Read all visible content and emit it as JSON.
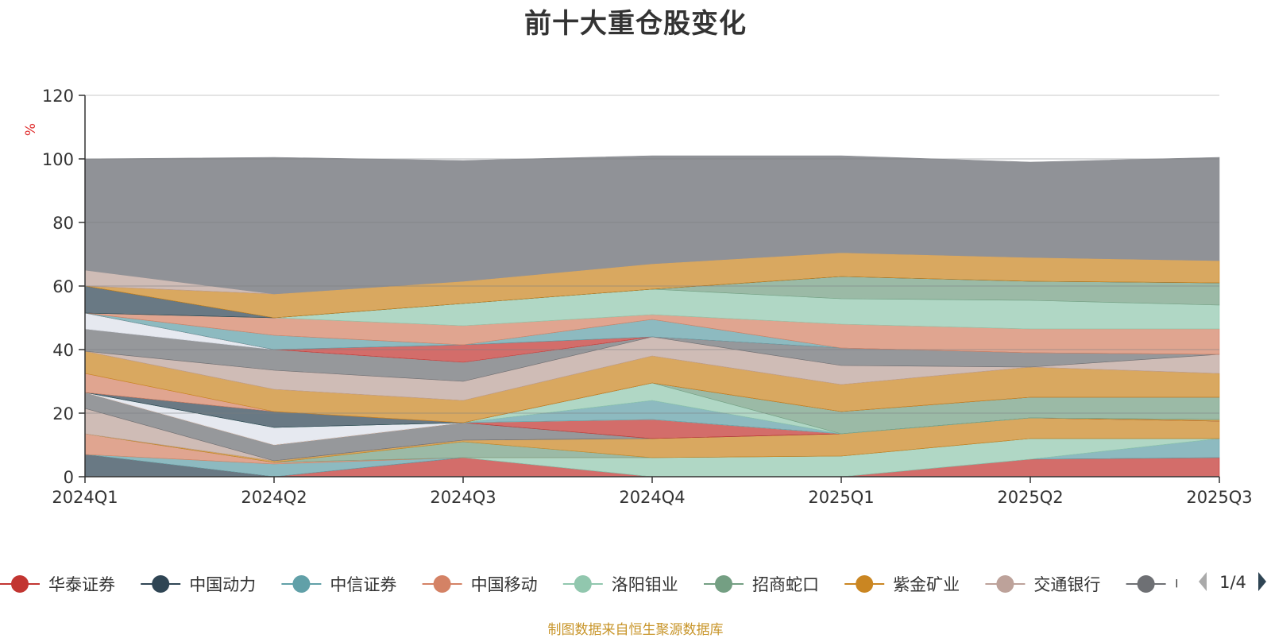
{
  "source": "制图数据来自恒生聚源数据库",
  "colors": {
    "axis": "#333333",
    "grid": "#c8c8c8",
    "rest": "#909297",
    "source_text": "#c8952a"
  },
  "chart_data": {
    "type": "area",
    "stacked": true,
    "title": "前十大重仓股变化",
    "ylabel": "%",
    "ylim": [
      0,
      120
    ],
    "yticks": [
      0,
      20,
      40,
      60,
      80,
      100,
      120
    ],
    "categories": [
      "2024Q1",
      "2024Q2",
      "2024Q3",
      "2024Q4",
      "2025Q1",
      "2025Q2",
      "2025Q3"
    ],
    "legend": {
      "items": [
        {
          "name": "华泰证券",
          "color": "#c23531"
        },
        {
          "name": "中国动力",
          "color": "#2f4554"
        },
        {
          "name": "中信证券",
          "color": "#61a0a8"
        },
        {
          "name": "中国移动",
          "color": "#d48265"
        },
        {
          "name": "洛阳钼业",
          "color": "#91c7ae"
        },
        {
          "name": "招商蛇口",
          "color": "#749f83"
        },
        {
          "name": "紫金矿业",
          "color": "#ca8622"
        },
        {
          "name": "交通银行",
          "color": "#bda29a"
        },
        {
          "name": "中国神华",
          "color": "#6e7074"
        }
      ],
      "page": "1/4"
    },
    "stack_layers": [
      {
        "color": "#2f4554",
        "values": [
          7,
          0,
          0,
          0,
          0,
          0,
          0
        ]
      },
      {
        "color": "#c23531",
        "values": [
          0,
          0,
          6,
          0,
          0,
          5.5,
          6
        ]
      },
      {
        "color": "#61a0a8",
        "values": [
          0,
          4,
          0,
          0,
          0,
          0,
          6
        ]
      },
      {
        "color": "#91c7ae",
        "values": [
          0,
          0,
          0,
          6,
          6.5,
          6.5,
          0
        ]
      },
      {
        "color": "#d48265",
        "values": [
          6.5,
          0.5,
          0,
          0,
          0,
          0,
          0
        ]
      },
      {
        "color": "#749f83",
        "values": [
          0,
          0,
          5,
          0,
          0,
          0,
          0
        ]
      },
      {
        "color": "#ca8622",
        "values": [
          0,
          0.5,
          0.5,
          6,
          7,
          6.5,
          5.5
        ]
      },
      {
        "color": "#bda29a",
        "values": [
          8,
          0,
          0,
          0,
          0,
          0,
          0
        ]
      },
      {
        "color": "#6e7074",
        "values": [
          5,
          5,
          5.5,
          0,
          0,
          0,
          0
        ]
      },
      {
        "color": "#c23531",
        "values": [
          0,
          0,
          0,
          6,
          0,
          0,
          0
        ]
      },
      {
        "color": "#ca8622",
        "values": [
          0,
          0,
          0,
          0,
          0,
          0,
          0.5
        ]
      },
      {
        "color": "#dde1ea",
        "values": [
          0,
          5.5,
          0,
          0,
          0,
          0,
          0
        ]
      },
      {
        "color": "#61a0a8",
        "values": [
          0,
          0,
          0,
          6,
          0,
          0,
          0
        ]
      },
      {
        "color": "#91c7ae",
        "values": [
          0,
          0,
          0,
          5.5,
          0,
          0,
          0
        ]
      },
      {
        "color": "#749f83",
        "values": [
          0,
          0,
          0,
          0,
          7,
          6.5,
          7
        ]
      },
      {
        "color": "#2f4554",
        "values": [
          0,
          5,
          0,
          0,
          0,
          0,
          0
        ]
      },
      {
        "color": "#d48265",
        "values": [
          6,
          0,
          0,
          0,
          0,
          0,
          0
        ]
      },
      {
        "color": "#ca8622",
        "values": [
          7,
          7,
          7,
          8.5,
          8.5,
          9.5,
          7.5
        ]
      },
      {
        "color": "#bda29a",
        "values": [
          0,
          6,
          6,
          6,
          6,
          0,
          6
        ]
      },
      {
        "color": "#6e7074",
        "values": [
          7,
          6.5,
          6,
          0,
          5.5,
          4.5,
          0
        ]
      },
      {
        "color": "#dde1ea",
        "values": [
          5,
          0,
          0,
          0,
          0,
          0,
          0
        ]
      },
      {
        "color": "#c23531",
        "values": [
          0,
          0,
          5.5,
          0,
          0,
          0,
          0
        ]
      },
      {
        "color": "#61a0a8",
        "values": [
          0,
          4.5,
          0,
          5.5,
          0,
          0,
          0
        ]
      },
      {
        "color": "#d48265",
        "values": [
          0,
          5.5,
          6,
          1.5,
          7.5,
          7.5,
          8
        ]
      },
      {
        "color": "#91c7ae",
        "values": [
          0,
          0,
          7,
          8,
          8,
          9,
          7.5
        ]
      },
      {
        "color": "#749f83",
        "values": [
          0,
          0,
          0,
          0,
          7,
          6,
          7
        ]
      },
      {
        "color": "#2f4554",
        "values": [
          8.5,
          0,
          0,
          0,
          0,
          0,
          0
        ]
      },
      {
        "color": "#ca8622",
        "values": [
          0,
          7.5,
          7,
          8,
          7.5,
          7.5,
          7
        ]
      },
      {
        "color": "#bda29a",
        "values": [
          5,
          0,
          0,
          0,
          0,
          0,
          0
        ]
      },
      {
        "color": "#909297",
        "values": [
          35,
          43,
          38,
          34,
          30.5,
          30,
          32.5
        ]
      }
    ]
  }
}
